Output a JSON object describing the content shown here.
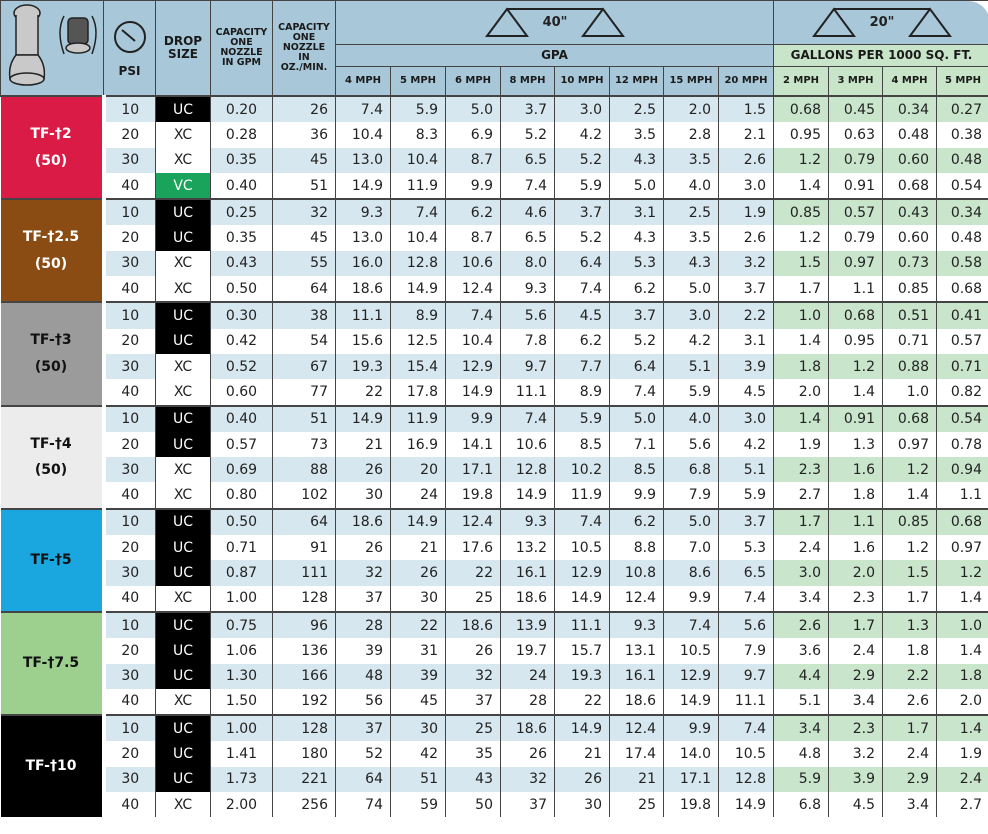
{
  "header": {
    "nozzle_icon": "nozzle-with-strainer-icon",
    "psi_icon": "pressure-gauge-icon",
    "psi": "PSI",
    "drop_size": [
      "DROP",
      "SIZE"
    ],
    "capacity_gpm": [
      "CAPACITY",
      "ONE",
      "NOZZLE",
      "IN GPM"
    ],
    "capacity_oz": [
      "CAPACITY",
      "ONE",
      "NOZZLE",
      "IN",
      "OZ./MIN."
    ],
    "spacing_40": "40\"",
    "spacing_20": "20\"",
    "gpa": "GPA",
    "gallons_1000": "GALLONS PER 1000 SQ. FT.",
    "gpa_speeds": [
      "4 MPH",
      "5 MPH",
      "6 MPH",
      "8 MPH",
      "10 MPH",
      "12 MPH",
      "15 MPH",
      "20 MPH"
    ],
    "gal_speeds": [
      "2 MPH",
      "3 MPH",
      "4 MPH",
      "5 MPH"
    ]
  },
  "colors": {
    "header_blue": "#a8c8d9",
    "header_green": "#c9e5c9",
    "UC": "#000000",
    "XC": "#ffffff",
    "VC": "#1aa35a"
  },
  "groups": [
    {
      "label": "TF-†2",
      "sub": "(50)",
      "color": "#d91b46",
      "text": "#ffffff",
      "rows": [
        {
          "psi": "10",
          "drop": "UC",
          "gpm": "0.20",
          "oz": "26",
          "gpa": [
            "7.4",
            "5.9",
            "5.0",
            "3.7",
            "3.0",
            "2.5",
            "2.0",
            "1.5"
          ],
          "gal": [
            "0.68",
            "0.45",
            "0.34",
            "0.27"
          ]
        },
        {
          "psi": "20",
          "drop": "XC",
          "gpm": "0.28",
          "oz": "36",
          "gpa": [
            "10.4",
            "8.3",
            "6.9",
            "5.2",
            "4.2",
            "3.5",
            "2.8",
            "2.1"
          ],
          "gal": [
            "0.95",
            "0.63",
            "0.48",
            "0.38"
          ]
        },
        {
          "psi": "30",
          "drop": "XC",
          "gpm": "0.35",
          "oz": "45",
          "gpa": [
            "13.0",
            "10.4",
            "8.7",
            "6.5",
            "5.2",
            "4.3",
            "3.5",
            "2.6"
          ],
          "gal": [
            "1.2",
            "0.79",
            "0.60",
            "0.48"
          ]
        },
        {
          "psi": "40",
          "drop": "VC",
          "gpm": "0.40",
          "oz": "51",
          "gpa": [
            "14.9",
            "11.9",
            "9.9",
            "7.4",
            "5.9",
            "5.0",
            "4.0",
            "3.0"
          ],
          "gal": [
            "1.4",
            "0.91",
            "0.68",
            "0.54"
          ]
        }
      ]
    },
    {
      "label": "TF-†2.5",
      "sub": "(50)",
      "color": "#8a4c12",
      "text": "#ffffff",
      "rows": [
        {
          "psi": "10",
          "drop": "UC",
          "gpm": "0.25",
          "oz": "32",
          "gpa": [
            "9.3",
            "7.4",
            "6.2",
            "4.6",
            "3.7",
            "3.1",
            "2.5",
            "1.9"
          ],
          "gal": [
            "0.85",
            "0.57",
            "0.43",
            "0.34"
          ]
        },
        {
          "psi": "20",
          "drop": "UC",
          "gpm": "0.35",
          "oz": "45",
          "gpa": [
            "13.0",
            "10.4",
            "8.7",
            "6.5",
            "5.2",
            "4.3",
            "3.5",
            "2.6"
          ],
          "gal": [
            "1.2",
            "0.79",
            "0.60",
            "0.48"
          ]
        },
        {
          "psi": "30",
          "drop": "XC",
          "gpm": "0.43",
          "oz": "55",
          "gpa": [
            "16.0",
            "12.8",
            "10.6",
            "8.0",
            "6.4",
            "5.3",
            "4.3",
            "3.2"
          ],
          "gal": [
            "1.5",
            "0.97",
            "0.73",
            "0.58"
          ]
        },
        {
          "psi": "40",
          "drop": "XC",
          "gpm": "0.50",
          "oz": "64",
          "gpa": [
            "18.6",
            "14.9",
            "12.4",
            "9.3",
            "7.4",
            "6.2",
            "5.0",
            "3.7"
          ],
          "gal": [
            "1.7",
            "1.1",
            "0.85",
            "0.68"
          ]
        }
      ]
    },
    {
      "label": "TF-†3",
      "sub": "(50)",
      "color": "#9b9b9b",
      "text": "#111111",
      "rows": [
        {
          "psi": "10",
          "drop": "UC",
          "gpm": "0.30",
          "oz": "38",
          "gpa": [
            "11.1",
            "8.9",
            "7.4",
            "5.6",
            "4.5",
            "3.7",
            "3.0",
            "2.2"
          ],
          "gal": [
            "1.0",
            "0.68",
            "0.51",
            "0.41"
          ]
        },
        {
          "psi": "20",
          "drop": "UC",
          "gpm": "0.42",
          "oz": "54",
          "gpa": [
            "15.6",
            "12.5",
            "10.4",
            "7.8",
            "6.2",
            "5.2",
            "4.2",
            "3.1"
          ],
          "gal": [
            "1.4",
            "0.95",
            "0.71",
            "0.57"
          ]
        },
        {
          "psi": "30",
          "drop": "XC",
          "gpm": "0.52",
          "oz": "67",
          "gpa": [
            "19.3",
            "15.4",
            "12.9",
            "9.7",
            "7.7",
            "6.4",
            "5.1",
            "3.9"
          ],
          "gal": [
            "1.8",
            "1.2",
            "0.88",
            "0.71"
          ]
        },
        {
          "psi": "40",
          "drop": "XC",
          "gpm": "0.60",
          "oz": "77",
          "gpa": [
            "22",
            "17.8",
            "14.9",
            "11.1",
            "8.9",
            "7.4",
            "5.9",
            "4.5"
          ],
          "gal": [
            "2.0",
            "1.4",
            "1.0",
            "0.82"
          ]
        }
      ]
    },
    {
      "label": "TF-†4",
      "sub": "(50)",
      "color": "#ececec",
      "text": "#111111",
      "rows": [
        {
          "psi": "10",
          "drop": "UC",
          "gpm": "0.40",
          "oz": "51",
          "gpa": [
            "14.9",
            "11.9",
            "9.9",
            "7.4",
            "5.9",
            "5.0",
            "4.0",
            "3.0"
          ],
          "gal": [
            "1.4",
            "0.91",
            "0.68",
            "0.54"
          ]
        },
        {
          "psi": "20",
          "drop": "UC",
          "gpm": "0.57",
          "oz": "73",
          "gpa": [
            "21",
            "16.9",
            "14.1",
            "10.6",
            "8.5",
            "7.1",
            "5.6",
            "4.2"
          ],
          "gal": [
            "1.9",
            "1.3",
            "0.97",
            "0.78"
          ]
        },
        {
          "psi": "30",
          "drop": "XC",
          "gpm": "0.69",
          "oz": "88",
          "gpa": [
            "26",
            "20",
            "17.1",
            "12.8",
            "10.2",
            "8.5",
            "6.8",
            "5.1"
          ],
          "gal": [
            "2.3",
            "1.6",
            "1.2",
            "0.94"
          ]
        },
        {
          "psi": "40",
          "drop": "XC",
          "gpm": "0.80",
          "oz": "102",
          "gpa": [
            "30",
            "24",
            "19.8",
            "14.9",
            "11.9",
            "9.9",
            "7.9",
            "5.9"
          ],
          "gal": [
            "2.7",
            "1.8",
            "1.4",
            "1.1"
          ]
        }
      ]
    },
    {
      "label": "TF-†5",
      "sub": "",
      "color": "#1aa7df",
      "text": "#111111",
      "rows": [
        {
          "psi": "10",
          "drop": "UC",
          "gpm": "0.50",
          "oz": "64",
          "gpa": [
            "18.6",
            "14.9",
            "12.4",
            "9.3",
            "7.4",
            "6.2",
            "5.0",
            "3.7"
          ],
          "gal": [
            "1.7",
            "1.1",
            "0.85",
            "0.68"
          ]
        },
        {
          "psi": "20",
          "drop": "UC",
          "gpm": "0.71",
          "oz": "91",
          "gpa": [
            "26",
            "21",
            "17.6",
            "13.2",
            "10.5",
            "8.8",
            "7.0",
            "5.3"
          ],
          "gal": [
            "2.4",
            "1.6",
            "1.2",
            "0.97"
          ]
        },
        {
          "psi": "30",
          "drop": "UC",
          "gpm": "0.87",
          "oz": "111",
          "gpa": [
            "32",
            "26",
            "22",
            "16.1",
            "12.9",
            "10.8",
            "8.6",
            "6.5"
          ],
          "gal": [
            "3.0",
            "2.0",
            "1.5",
            "1.2"
          ]
        },
        {
          "psi": "40",
          "drop": "XC",
          "gpm": "1.00",
          "oz": "128",
          "gpa": [
            "37",
            "30",
            "25",
            "18.6",
            "14.9",
            "12.4",
            "9.9",
            "7.4"
          ],
          "gal": [
            "3.4",
            "2.3",
            "1.7",
            "1.4"
          ]
        }
      ]
    },
    {
      "label": "TF-†7.5",
      "sub": "",
      "color": "#9dcf8f",
      "text": "#111111",
      "rows": [
        {
          "psi": "10",
          "drop": "UC",
          "gpm": "0.75",
          "oz": "96",
          "gpa": [
            "28",
            "22",
            "18.6",
            "13.9",
            "11.1",
            "9.3",
            "7.4",
            "5.6"
          ],
          "gal": [
            "2.6",
            "1.7",
            "1.3",
            "1.0"
          ]
        },
        {
          "psi": "20",
          "drop": "UC",
          "gpm": "1.06",
          "oz": "136",
          "gpa": [
            "39",
            "31",
            "26",
            "19.7",
            "15.7",
            "13.1",
            "10.5",
            "7.9"
          ],
          "gal": [
            "3.6",
            "2.4",
            "1.8",
            "1.4"
          ]
        },
        {
          "psi": "30",
          "drop": "UC",
          "gpm": "1.30",
          "oz": "166",
          "gpa": [
            "48",
            "39",
            "32",
            "24",
            "19.3",
            "16.1",
            "12.9",
            "9.7"
          ],
          "gal": [
            "4.4",
            "2.9",
            "2.2",
            "1.8"
          ]
        },
        {
          "psi": "40",
          "drop": "XC",
          "gpm": "1.50",
          "oz": "192",
          "gpa": [
            "56",
            "45",
            "37",
            "28",
            "22",
            "18.6",
            "14.9",
            "11.1"
          ],
          "gal": [
            "5.1",
            "3.4",
            "2.6",
            "2.0"
          ]
        }
      ]
    },
    {
      "label": "TF-†10",
      "sub": "",
      "color": "#000000",
      "text": "#ffffff",
      "rows": [
        {
          "psi": "10",
          "drop": "UC",
          "gpm": "1.00",
          "oz": "128",
          "gpa": [
            "37",
            "30",
            "25",
            "18.6",
            "14.9",
            "12.4",
            "9.9",
            "7.4"
          ],
          "gal": [
            "3.4",
            "2.3",
            "1.7",
            "1.4"
          ]
        },
        {
          "psi": "20",
          "drop": "UC",
          "gpm": "1.41",
          "oz": "180",
          "gpa": [
            "52",
            "42",
            "35",
            "26",
            "21",
            "17.4",
            "14.0",
            "10.5"
          ],
          "gal": [
            "4.8",
            "3.2",
            "2.4",
            "1.9"
          ]
        },
        {
          "psi": "30",
          "drop": "UC",
          "gpm": "1.73",
          "oz": "221",
          "gpa": [
            "64",
            "51",
            "43",
            "32",
            "26",
            "21",
            "17.1",
            "12.8"
          ],
          "gal": [
            "5.9",
            "3.9",
            "2.9",
            "2.4"
          ]
        },
        {
          "psi": "40",
          "drop": "XC",
          "gpm": "2.00",
          "oz": "256",
          "gpa": [
            "74",
            "59",
            "50",
            "37",
            "30",
            "25",
            "19.8",
            "14.9"
          ],
          "gal": [
            "6.8",
            "4.5",
            "3.4",
            "2.7"
          ]
        }
      ]
    }
  ]
}
